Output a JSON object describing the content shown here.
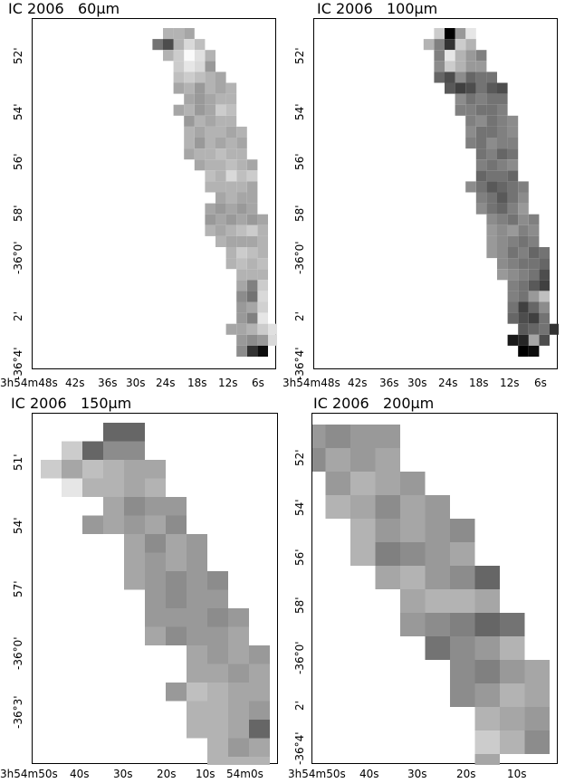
{
  "chart_data": [
    {
      "type": "heatmap",
      "title": "IC 2006   60μm",
      "yticks": [
        "52'",
        "54'",
        "56'",
        "58'",
        "-36°0'",
        "2'",
        "-36°4'"
      ],
      "xticks": [
        "3h54m48s",
        "42s",
        "36s",
        "30s",
        "24s",
        "18s",
        "12s",
        "6s"
      ],
      "rows": [
        {
          "col0": 7,
          "values": [
            0.35,
            0.3,
            0.3
          ]
        },
        {
          "col0": 6,
          "values": [
            0.25,
            0.15,
            0.3,
            0.7,
            0.55
          ]
        },
        {
          "col0": 5,
          "values": [
            0.3,
            0.12,
            0.02,
            0.2,
            0.3
          ]
        },
        {
          "col0": 5,
          "values": [
            0.4,
            0.15,
            0.1,
            0.2
          ]
        },
        {
          "col0": 4,
          "values": [
            0.35,
            0.3,
            0.25,
            0.2,
            0.25
          ]
        },
        {
          "col0": 3,
          "values": [
            0.3,
            0.35,
            0.3,
            0.4,
            0.3,
            0.35
          ]
        },
        {
          "col0": 3,
          "values": [
            0.3,
            0.3,
            0.35,
            0.4,
            0.35
          ]
        },
        {
          "col0": 3,
          "values": [
            0.25,
            0.2,
            0.35,
            0.4,
            0.3,
            0.35
          ]
        },
        {
          "col0": 3,
          "values": [
            0.3,
            0.3,
            0.35,
            0.3,
            0.4
          ]
        },
        {
          "col0": 2,
          "values": [
            0.3,
            0.35,
            0.3,
            0.3,
            0.35,
            0.3
          ]
        },
        {
          "col0": 2,
          "values": [
            0.35,
            0.3,
            0.35,
            0.3,
            0.4,
            0.3
          ]
        },
        {
          "col0": 2,
          "values": [
            0.3,
            0.3,
            0.25,
            0.3,
            0.3,
            0.35
          ]
        },
        {
          "col0": 1,
          "values": [
            0.35,
            0.3,
            0.25,
            0.3,
            0.3,
            0.35
          ]
        },
        {
          "col0": 1,
          "values": [
            0.2,
            0.25,
            0.15,
            0.3,
            0.25
          ]
        },
        {
          "col0": 1,
          "values": [
            0.35,
            0.3,
            0.3,
            0.3,
            0.3
          ]
        },
        {
          "col0": 1,
          "values": [
            0.35,
            0.35,
            0.3,
            0.35
          ]
        },
        {
          "col0": 1,
          "values": [
            0.35,
            0.4,
            0.35,
            0.4,
            0.35
          ]
        },
        {
          "col0": 0,
          "values": [
            0.35,
            0.4,
            0.35,
            0.4,
            0.35,
            0.4
          ]
        },
        {
          "col0": 0,
          "values": [
            0.3,
            0.2,
            0.25,
            0.3,
            0.35,
            0.3
          ]
        },
        {
          "col0": 0,
          "values": [
            0.3,
            0.35,
            0.35,
            0.35,
            0.3
          ]
        },
        {
          "col0": 0,
          "values": [
            0.3,
            0.25,
            0.2,
            0.3
          ]
        },
        {
          "col0": 0,
          "values": [
            0.25,
            0.3,
            0.25,
            0.3
          ]
        },
        {
          "col0": 0,
          "values": [
            0.3,
            0.3,
            0.3
          ]
        },
        {
          "col0": 0,
          "values": [
            0.2,
            0.5,
            0.35
          ]
        },
        {
          "col0": 0,
          "values": [
            0.15,
            0.55,
            0.45
          ]
        },
        {
          "col0": 0,
          "values": [
            0.18,
            0.35,
            0.4
          ]
        },
        {
          "col0": 0,
          "values": [
            0.1,
            0.5,
            0.4
          ]
        },
        {
          "col0": -1,
          "values": [
            0.12,
            0.2,
            0.3,
            0.35,
            0.35
          ]
        },
        {
          "col0": -1,
          "values": [
            0.15,
            0.4,
            0.45,
            0.4
          ]
        },
        {
          "col0": 0,
          "values": [
            0.95,
            0.8,
            0.45
          ]
        }
      ]
    },
    {
      "type": "heatmap",
      "title": "IC 2006   100μm",
      "yticks": [
        "52'",
        "54'",
        "56'",
        "58'",
        "-36°0'",
        "2'",
        "-36°4'"
      ],
      "xticks": [
        "3h54m48s",
        "42s",
        "36s",
        "30s",
        "24s",
        "18s",
        "12s",
        "6s"
      ],
      "rows": [
        {
          "col0": 7,
          "values": [
            0.1,
            0.4,
            1.0,
            0.2
          ]
        },
        {
          "col0": 7,
          "values": [
            0.3,
            0.2,
            0.8,
            0.5,
            0.3
          ]
        },
        {
          "col0": 6,
          "values": [
            0.5,
            0.4,
            0.3,
            0.1,
            0.5
          ]
        },
        {
          "col0": 6,
          "values": [
            0.4,
            0.4,
            0.3,
            0.2,
            0.45
          ]
        },
        {
          "col0": 5,
          "values": [
            0.55,
            0.55,
            0.6,
            0.45,
            0.7,
            0.6
          ]
        },
        {
          "col0": 4,
          "values": [
            0.7,
            0.65,
            0.55,
            0.7,
            0.75,
            0.65
          ]
        },
        {
          "col0": 4,
          "values": [
            0.55,
            0.55,
            0.5,
            0.55,
            0.45
          ]
        },
        {
          "col0": 4,
          "values": [
            0.5,
            0.55,
            0.55,
            0.5,
            0.5
          ]
        },
        {
          "col0": 3,
          "values": [
            0.45,
            0.5,
            0.55,
            0.45,
            0.5
          ]
        },
        {
          "col0": 3,
          "values": [
            0.45,
            0.5,
            0.55,
            0.55,
            0.45
          ]
        },
        {
          "col0": 3,
          "values": [
            0.5,
            0.5,
            0.45,
            0.55,
            0.5
          ]
        },
        {
          "col0": 3,
          "values": [
            0.55,
            0.6,
            0.5,
            0.55
          ]
        },
        {
          "col0": 3,
          "values": [
            0.45,
            0.5,
            0.55,
            0.5
          ]
        },
        {
          "col0": 3,
          "values": [
            0.6,
            0.55,
            0.55,
            0.6
          ]
        },
        {
          "col0": 2,
          "values": [
            0.5,
            0.55,
            0.6,
            0.65,
            0.55,
            0.45
          ]
        },
        {
          "col0": 2,
          "values": [
            0.45,
            0.55,
            0.65,
            0.55,
            0.5
          ]
        },
        {
          "col0": 2,
          "values": [
            0.4,
            0.5,
            0.6,
            0.55,
            0.45
          ]
        },
        {
          "col0": 1,
          "values": [
            0.5,
            0.45,
            0.55,
            0.5,
            0.45
          ]
        },
        {
          "col0": 1,
          "values": [
            0.45,
            0.5,
            0.4,
            0.45,
            0.4
          ]
        },
        {
          "col0": 1,
          "values": [
            0.5,
            0.55,
            0.5,
            0.45,
            0.4
          ]
        },
        {
          "col0": 0,
          "values": [
            0.55,
            0.6,
            0.5,
            0.55,
            0.45,
            0.4
          ]
        },
        {
          "col0": 0,
          "values": [
            0.6,
            0.55,
            0.55,
            0.5,
            0.45
          ]
        },
        {
          "col0": 0,
          "values": [
            0.7,
            0.55,
            0.5,
            0.45,
            0.4
          ]
        },
        {
          "col0": 0,
          "values": [
            0.75,
            0.65,
            0.55,
            0.5
          ]
        },
        {
          "col0": 0,
          "values": [
            0.25,
            0.4,
            0.55,
            0.5
          ]
        },
        {
          "col0": 0,
          "values": [
            0.45,
            0.6,
            0.75,
            0.55
          ]
        },
        {
          "col0": 0,
          "values": [
            0.55,
            0.75,
            0.7,
            0.6
          ]
        },
        {
          "col0": -1,
          "values": [
            0.8,
            0.55,
            0.6,
            0.65
          ]
        },
        {
          "col0": 0,
          "values": [
            0.7,
            0.35,
            0.85,
            0.9
          ]
        },
        {
          "col0": 1,
          "values": [
            0.95,
            1.0
          ]
        }
      ]
    },
    {
      "type": "heatmap",
      "title": "IC 2006   150μm",
      "yticks": [
        "51'",
        "54'",
        "57'",
        "-36°0'",
        "-36°3'"
      ],
      "xticks": [
        "3h54m50s",
        "40s",
        "30s",
        "20s",
        "10s",
        "54m0s"
      ],
      "rows": [
        {
          "col0": 6,
          "values": [
            0.6,
            0.6
          ]
        },
        {
          "col0": 6,
          "values": [
            0.45,
            0.45,
            0.6,
            0.2
          ]
        },
        {
          "col0": 5,
          "values": [
            0.35,
            0.35,
            0.3,
            0.25,
            0.35,
            0.2
          ]
        },
        {
          "col0": 5,
          "values": [
            0.3,
            0.35,
            0.3,
            0.3,
            0.1
          ]
        },
        {
          "col0": 4,
          "values": [
            0.4,
            0.4,
            0.45,
            0.35
          ]
        },
        {
          "col0": 4,
          "values": [
            0.45,
            0.35,
            0.4,
            0.35,
            0.4
          ]
        },
        {
          "col0": 3,
          "values": [
            0.4,
            0.35,
            0.45,
            0.35
          ]
        },
        {
          "col0": 3,
          "values": [
            0.4,
            0.35,
            0.4,
            0.35
          ]
        },
        {
          "col0": 2,
          "values": [
            0.45,
            0.4,
            0.45,
            0.4,
            0.35
          ]
        },
        {
          "col0": 2,
          "values": [
            0.4,
            0.4,
            0.45,
            0.4
          ]
        },
        {
          "col0": 1,
          "values": [
            0.4,
            0.45,
            0.4,
            0.4,
            0.4
          ]
        },
        {
          "col0": 1,
          "values": [
            0.35,
            0.4,
            0.4,
            0.45,
            0.35
          ]
        },
        {
          "col0": 0,
          "values": [
            0.4,
            0.35,
            0.4,
            0.35
          ]
        },
        {
          "col0": 0,
          "values": [
            0.35,
            0.4,
            0.35,
            0.35
          ]
        },
        {
          "col0": 0,
          "values": [
            0.35,
            0.35,
            0.3,
            0.25,
            0.4
          ]
        },
        {
          "col0": 0,
          "values": [
            0.4,
            0.35,
            0.3,
            0.3
          ]
        },
        {
          "col0": 0,
          "values": [
            0.6,
            0.35,
            0.3,
            0.3
          ]
        },
        {
          "col0": 0,
          "values": [
            0.35,
            0.4,
            0.3
          ]
        },
        {
          "col0": 0,
          "values": [
            0.3,
            0.3,
            0.3
          ]
        }
      ]
    },
    {
      "type": "heatmap",
      "title": "IC 2006   200μm",
      "yticks": [
        "52'",
        "54'",
        "56'",
        "58'",
        "-36°0'",
        "2'",
        "-36°4'"
      ],
      "xticks": [
        "3h54m50s",
        "40s",
        "30s",
        "20s",
        "10s"
      ],
      "rows": [
        {
          "col0": 6,
          "values": [
            0.4,
            0.4,
            0.45,
            0.4
          ]
        },
        {
          "col0": 6,
          "values": [
            0.35,
            0.4,
            0.35,
            0.45
          ]
        },
        {
          "col0": 5,
          "values": [
            0.4,
            0.35,
            0.3,
            0.4
          ]
        },
        {
          "col0": 4,
          "values": [
            0.4,
            0.35,
            0.45,
            0.35,
            0.3
          ]
        },
        {
          "col0": 3,
          "values": [
            0.45,
            0.4,
            0.35,
            0.4,
            0.3
          ]
        },
        {
          "col0": 3,
          "values": [
            0.35,
            0.4,
            0.45,
            0.5,
            0.3
          ]
        },
        {
          "col0": 2,
          "values": [
            0.6,
            0.45,
            0.4,
            0.3,
            0.35
          ]
        },
        {
          "col0": 2,
          "values": [
            0.35,
            0.3,
            0.3,
            0.35
          ]
        },
        {
          "col0": 1,
          "values": [
            0.55,
            0.6,
            0.5,
            0.45,
            0.4
          ]
        },
        {
          "col0": 1,
          "values": [
            0.3,
            0.4,
            0.45,
            0.55
          ]
        },
        {
          "col0": 0,
          "values": [
            0.35,
            0.4,
            0.5,
            0.45
          ]
        },
        {
          "col0": 0,
          "values": [
            0.35,
            0.3,
            0.4,
            0.45
          ]
        },
        {
          "col0": 0,
          "values": [
            0.4,
            0.35,
            0.3
          ]
        },
        {
          "col0": 0,
          "values": [
            0.45,
            0.3,
            0.2
          ]
        },
        {
          "col0": 2,
          "values": [
            0.35
          ]
        }
      ]
    }
  ]
}
